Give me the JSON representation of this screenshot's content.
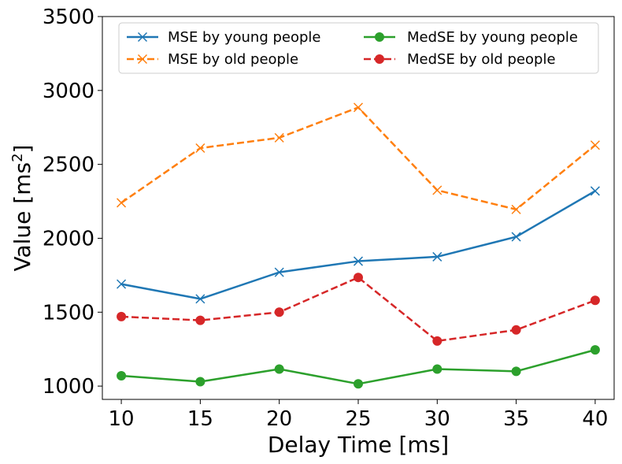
{
  "chart_data": {
    "type": "line",
    "title": "",
    "xlabel": "Delay Time [ms]",
    "ylabel_main": "Value [ms",
    "ylabel_sup": "2",
    "ylabel_close": "]",
    "x": [
      10,
      15,
      20,
      25,
      30,
      35,
      40
    ],
    "x_ticks": [
      "10",
      "15",
      "20",
      "25",
      "30",
      "35",
      "40"
    ],
    "y_ticks": [
      "1000",
      "1500",
      "2000",
      "2500",
      "3000",
      "3500"
    ],
    "y_tick_values": [
      1000,
      1500,
      2000,
      2500,
      3000,
      3500
    ],
    "xlim": [
      8.8,
      41.2
    ],
    "ylim": [
      910,
      3500
    ],
    "grid": false,
    "legend_placement": "top",
    "series": [
      {
        "name": "MSE by young people",
        "values": [
          1690,
          1590,
          1770,
          1845,
          1875,
          2010,
          2320
        ],
        "color": "#1f77b4",
        "line_style": "solid",
        "marker": "x"
      },
      {
        "name": "MSE by old people",
        "values": [
          2240,
          2610,
          2680,
          2885,
          2325,
          2195,
          2630
        ],
        "color": "#ff7f0e",
        "line_style": "dashed",
        "marker": "x"
      },
      {
        "name": "MedSE by young people",
        "values": [
          1070,
          1030,
          1115,
          1015,
          1115,
          1100,
          1245
        ],
        "color": "#2ca02c",
        "line_style": "solid",
        "marker": "circle"
      },
      {
        "name": "MedSE by old people",
        "values": [
          1470,
          1445,
          1500,
          1735,
          1305,
          1380,
          1580
        ],
        "color": "#d62728",
        "line_style": "dashed",
        "marker": "circle"
      }
    ]
  }
}
